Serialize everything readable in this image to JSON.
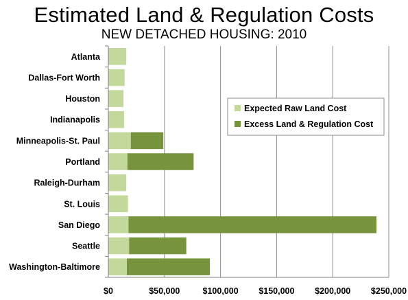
{
  "title": "Estimated Land & Regulation Costs",
  "subtitle": "NEW DETACHED HOUSING: 2010",
  "colors": {
    "raw_land": "#c3d99b",
    "excess": "#77933c",
    "grid": "#8c8c8c",
    "axis": "#7f7f7f"
  },
  "chart_data": {
    "type": "bar",
    "orientation": "horizontal",
    "stacked": true,
    "categories": [
      "Atlanta",
      "Dallas-Fort Worth",
      "Houston",
      "Indianapolis",
      "Minneapolis-St. Paul",
      "Portland",
      "Raleigh-Durham",
      "St. Louis",
      "San Diego",
      "Seattle",
      "Washington-Baltimore"
    ],
    "series": [
      {
        "name": "Expected Raw Land Cost",
        "values": [
          16000,
          14500,
          13500,
          14000,
          20000,
          17000,
          16000,
          17500,
          18000,
          18500,
          16500
        ]
      },
      {
        "name": "Excess Land & Regulation Cost",
        "values": [
          0,
          0,
          0,
          0,
          29000,
          59000,
          0,
          0,
          221000,
          51000,
          74000
        ]
      }
    ],
    "xlim": [
      0,
      250000
    ],
    "xticks": [
      0,
      50000,
      100000,
      150000,
      200000,
      250000
    ],
    "xtick_labels": [
      "$0",
      "$50,000",
      "$100,000",
      "$150,000",
      "$200,000",
      "$250,000"
    ],
    "grid": true,
    "legend_position": "right"
  }
}
